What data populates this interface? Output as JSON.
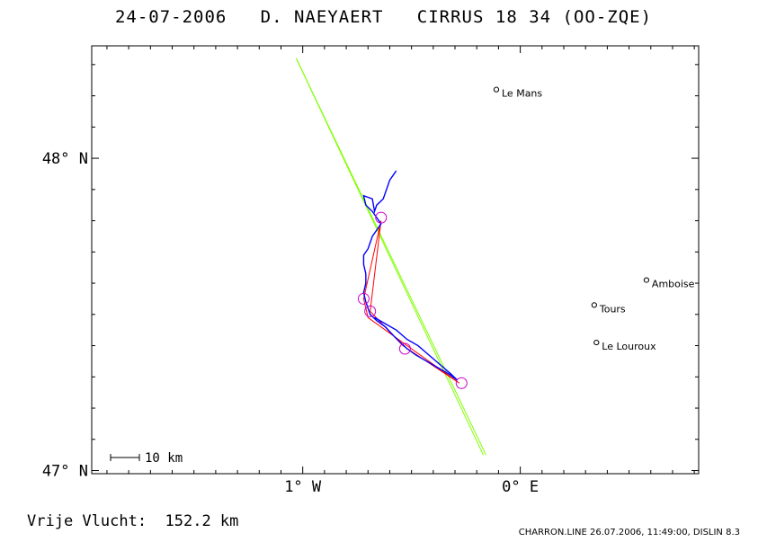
{
  "title": "24-07-2006   D. NAEYAERT   CIRRUS 18 34 (OO-ZQE)",
  "axes": {
    "lat_labels": [
      {
        "lat": 48.0,
        "label": "48° N"
      },
      {
        "lat": 47.0,
        "label": "47° N"
      }
    ],
    "lon_labels": [
      {
        "lon": -1.0,
        "label": "1° W"
      },
      {
        "lon": 0.0,
        "label": "0° E"
      }
    ],
    "lon_range": [
      -1.97,
      0.82
    ],
    "lat_range": [
      46.99,
      48.36
    ]
  },
  "scale_bar": {
    "label": "10 km"
  },
  "cities": [
    {
      "name": "Le Mans",
      "lon": -0.11,
      "lat": 48.22
    },
    {
      "name": "Amboise",
      "lon": 0.58,
      "lat": 47.61
    },
    {
      "name": "Tours",
      "lon": 0.34,
      "lat": 47.53
    },
    {
      "name": "Le Louroux",
      "lon": 0.35,
      "lat": 47.41
    }
  ],
  "colors": {
    "track": "#0000ff",
    "task": "#ff0000",
    "sector": "#80ff00",
    "turnpoint": "#cc00cc",
    "frame": "#000000"
  },
  "sector_lines": [
    [
      {
        "lon": -1.03,
        "lat": 48.32
      },
      {
        "lon": -0.17,
        "lat": 47.05
      }
    ],
    [
      {
        "lon": -1.03,
        "lat": 48.32
      },
      {
        "lon": -0.17,
        "lat": 47.05
      }
    ]
  ],
  "task_points": [
    {
      "lon": -0.64,
      "lat": 47.8
    },
    {
      "lon": -0.69,
      "lat": 47.51
    },
    {
      "lon": -0.54,
      "lat": 47.4
    },
    {
      "lon": -0.28,
      "lat": 47.28
    },
    {
      "lon": -0.7,
      "lat": 47.49
    },
    {
      "lon": -0.72,
      "lat": 47.55
    },
    {
      "lon": -0.64,
      "lat": 47.8
    }
  ],
  "turnpoints": [
    {
      "lon": -0.64,
      "lat": 47.81
    },
    {
      "lon": -0.72,
      "lat": 47.55
    },
    {
      "lon": -0.69,
      "lat": 47.51
    },
    {
      "lon": -0.53,
      "lat": 47.39
    },
    {
      "lon": -0.27,
      "lat": 47.28
    }
  ],
  "track": [
    {
      "lon": -0.57,
      "lat": 47.96
    },
    {
      "lon": -0.59,
      "lat": 47.94
    },
    {
      "lon": -0.6,
      "lat": 47.93
    },
    {
      "lon": -0.61,
      "lat": 47.91
    },
    {
      "lon": -0.62,
      "lat": 47.89
    },
    {
      "lon": -0.63,
      "lat": 47.87
    },
    {
      "lon": -0.66,
      "lat": 47.85
    },
    {
      "lon": -0.67,
      "lat": 47.83
    },
    {
      "lon": -0.68,
      "lat": 47.87
    },
    {
      "lon": -0.72,
      "lat": 47.88
    },
    {
      "lon": -0.71,
      "lat": 47.85
    },
    {
      "lon": -0.68,
      "lat": 47.83
    },
    {
      "lon": -0.66,
      "lat": 47.81
    },
    {
      "lon": -0.64,
      "lat": 47.79
    },
    {
      "lon": -0.66,
      "lat": 47.77
    },
    {
      "lon": -0.68,
      "lat": 47.75
    },
    {
      "lon": -0.69,
      "lat": 47.73
    },
    {
      "lon": -0.7,
      "lat": 47.71
    },
    {
      "lon": -0.72,
      "lat": 47.69
    },
    {
      "lon": -0.72,
      "lat": 47.66
    },
    {
      "lon": -0.71,
      "lat": 47.63
    },
    {
      "lon": -0.71,
      "lat": 47.6
    },
    {
      "lon": -0.72,
      "lat": 47.57
    },
    {
      "lon": -0.71,
      "lat": 47.54
    },
    {
      "lon": -0.7,
      "lat": 47.52
    },
    {
      "lon": -0.69,
      "lat": 47.5
    },
    {
      "lon": -0.66,
      "lat": 47.48
    },
    {
      "lon": -0.62,
      "lat": 47.46
    },
    {
      "lon": -0.58,
      "lat": 47.43
    },
    {
      "lon": -0.55,
      "lat": 47.41
    },
    {
      "lon": -0.52,
      "lat": 47.39
    },
    {
      "lon": -0.48,
      "lat": 47.37
    },
    {
      "lon": -0.43,
      "lat": 47.35
    },
    {
      "lon": -0.38,
      "lat": 47.33
    },
    {
      "lon": -0.33,
      "lat": 47.31
    },
    {
      "lon": -0.29,
      "lat": 47.29
    },
    {
      "lon": -0.32,
      "lat": 47.31
    },
    {
      "lon": -0.37,
      "lat": 47.34
    },
    {
      "lon": -0.42,
      "lat": 47.37
    },
    {
      "lon": -0.47,
      "lat": 47.4
    },
    {
      "lon": -0.52,
      "lat": 47.42
    },
    {
      "lon": -0.57,
      "lat": 47.45
    },
    {
      "lon": -0.62,
      "lat": 47.47
    },
    {
      "lon": -0.67,
      "lat": 47.49
    }
  ],
  "distance_text": "Vrije Vlucht:  152.2 km",
  "footer": "CHARRON.LINE 26.07.2006, 11:49:00, DISLIN 8.3"
}
